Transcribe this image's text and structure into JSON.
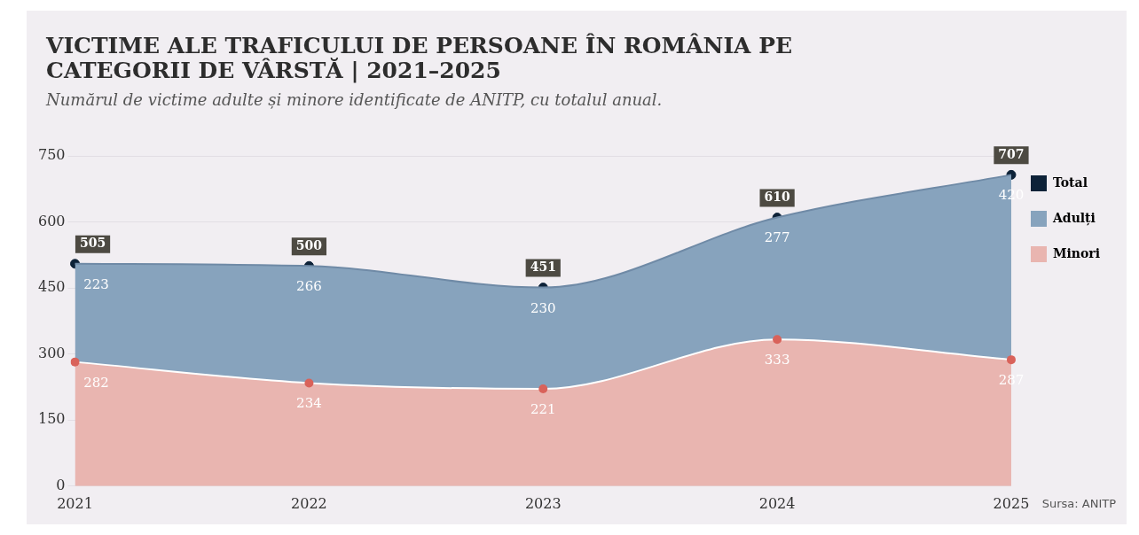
{
  "chart_data": {
    "type": "area",
    "title": "VICTIME ALE TRAFICULUI DE PERSOANE ÎN ROMÂNIA PE CATEGORII DE VÂRSTĂ | 2021–2025",
    "subtitle": "Numărul de victime adulte și minore identificate de ANITP, cu totalul anual.",
    "categories": [
      "2021",
      "2022",
      "2023",
      "2024",
      "2025"
    ],
    "series": [
      {
        "name": "Minori",
        "color": "#e9b5b0",
        "values": [
          282,
          234,
          221,
          333,
          287
        ],
        "marker": "circle"
      },
      {
        "name": "Adulți",
        "color": "#87a3bd",
        "values": [
          223,
          266,
          230,
          277,
          420
        ],
        "marker": "none"
      },
      {
        "name": "Total",
        "type": "scatter",
        "color": "#0d2238",
        "values": [
          505,
          500,
          451,
          610,
          707
        ],
        "marker": "circle"
      }
    ],
    "stacked": true,
    "ylim": [
      0,
      750
    ],
    "yticks": [
      0,
      150,
      300,
      450,
      600,
      750
    ],
    "grid": "y",
    "legend": "right",
    "data_labels": true,
    "annotations": [
      "Sursa: ANITP"
    ]
  }
}
